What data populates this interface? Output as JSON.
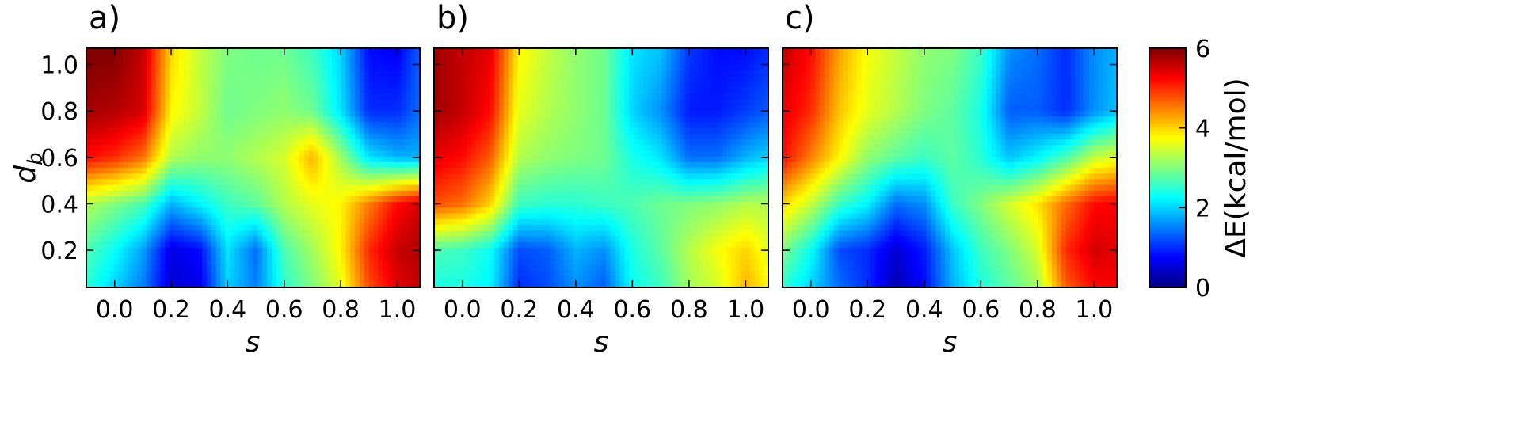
{
  "chart_data": [
    {
      "type": "heatmap",
      "panel_label": "a)",
      "xlabel": "s",
      "ylabel": "d",
      "ylabel_subscript": "b",
      "xlim": [
        -0.1,
        1.08
      ],
      "ylim": [
        0.04,
        1.07
      ],
      "xticks": [
        "0.0",
        "0.2",
        "0.4",
        "0.6",
        "0.8",
        "1.0"
      ],
      "xtick_values": [
        0.0,
        0.2,
        0.4,
        0.6,
        0.8,
        1.0
      ],
      "yticks": [
        "0.2",
        "0.4",
        "0.6",
        "0.8",
        "1.0"
      ],
      "ytick_values": [
        0.2,
        0.4,
        0.6,
        0.8,
        1.0
      ],
      "x": [
        -0.1,
        0.0,
        0.1,
        0.2,
        0.3,
        0.4,
        0.5,
        0.6,
        0.7,
        0.8,
        0.9,
        1.0,
        1.08
      ],
      "y": [
        0.04,
        0.2,
        0.4,
        0.6,
        0.8,
        1.07
      ],
      "z": [
        [
          2.5,
          2.0,
          1.5,
          0.5,
          0.6,
          2.0,
          1.5,
          2.5,
          3.0,
          3.6,
          4.8,
          5.4,
          5.6
        ],
        [
          2.7,
          2.3,
          1.7,
          0.6,
          0.8,
          2.1,
          1.4,
          2.7,
          3.2,
          3.8,
          5.0,
          5.6,
          5.7
        ],
        [
          3.3,
          3.0,
          2.7,
          1.8,
          2.2,
          2.6,
          2.8,
          3.3,
          3.6,
          3.8,
          4.5,
          5.2,
          5.5
        ],
        [
          5.2,
          5.0,
          4.6,
          3.3,
          3.1,
          3.1,
          3.3,
          3.5,
          4.2,
          3.2,
          2.1,
          1.8,
          1.8
        ],
        [
          5.8,
          5.7,
          5.5,
          3.8,
          3.4,
          2.9,
          3.0,
          3.1,
          2.9,
          2.1,
          1.0,
          1.0,
          1.4
        ],
        [
          6.0,
          6.0,
          5.6,
          4.0,
          3.4,
          3.0,
          2.9,
          2.9,
          2.6,
          2.0,
          0.8,
          0.7,
          1.3
        ]
      ]
    },
    {
      "type": "heatmap",
      "panel_label": "b)",
      "xlabel": "s",
      "ylabel": "",
      "xlim": [
        -0.1,
        1.08
      ],
      "ylim": [
        0.04,
        1.07
      ],
      "xticks": [
        "0.0",
        "0.2",
        "0.4",
        "0.6",
        "0.8",
        "1.0"
      ],
      "xtick_values": [
        0.0,
        0.2,
        0.4,
        0.6,
        0.8,
        1.0
      ],
      "yticks": [],
      "ytick_values": [
        0.2,
        0.4,
        0.6,
        0.8,
        1.0
      ],
      "x": [
        -0.1,
        0.0,
        0.1,
        0.2,
        0.3,
        0.4,
        0.5,
        0.6,
        0.7,
        0.8,
        0.9,
        1.0,
        1.08
      ],
      "y": [
        0.04,
        0.2,
        0.4,
        0.6,
        0.8,
        1.07
      ],
      "z": [
        [
          2.4,
          2.4,
          2.2,
          1.0,
          1.2,
          1.6,
          1.3,
          2.3,
          2.6,
          3.2,
          3.5,
          4.2,
          3.8
        ],
        [
          2.7,
          2.6,
          2.3,
          1.2,
          1.3,
          1.8,
          1.6,
          2.4,
          2.8,
          3.3,
          3.7,
          4.0,
          3.6
        ],
        [
          4.8,
          4.6,
          4.0,
          2.6,
          2.5,
          2.5,
          2.6,
          2.7,
          2.9,
          3.0,
          3.1,
          3.3,
          3.3
        ],
        [
          5.4,
          5.2,
          4.7,
          3.3,
          3.1,
          3.0,
          2.9,
          2.4,
          2.1,
          1.4,
          1.4,
          1.8,
          2.0
        ],
        [
          5.8,
          5.6,
          5.2,
          3.6,
          3.3,
          3.1,
          2.9,
          2.0,
          1.6,
          0.9,
          0.9,
          1.1,
          1.3
        ],
        [
          5.8,
          5.6,
          5.4,
          3.8,
          3.4,
          3.1,
          2.9,
          2.1,
          1.9,
          1.1,
          0.8,
          0.8,
          1.0
        ]
      ]
    },
    {
      "type": "heatmap",
      "panel_label": "c)",
      "xlabel": "s",
      "ylabel": "",
      "xlim": [
        -0.1,
        1.08
      ],
      "ylim": [
        0.04,
        1.07
      ],
      "xticks": [
        "0.0",
        "0.2",
        "0.4",
        "0.6",
        "0.8",
        "1.0"
      ],
      "xtick_values": [
        0.0,
        0.2,
        0.4,
        0.6,
        0.8,
        1.0
      ],
      "yticks": [],
      "ytick_values": [
        0.2,
        0.4,
        0.6,
        0.8,
        1.0
      ],
      "x": [
        -0.1,
        0.0,
        0.1,
        0.2,
        0.3,
        0.4,
        0.5,
        0.6,
        0.7,
        0.8,
        0.9,
        1.0,
        1.08
      ],
      "y": [
        0.04,
        0.2,
        0.4,
        0.6,
        0.8,
        1.07
      ],
      "z": [
        [
          2.5,
          2.0,
          1.4,
          1.0,
          0.3,
          0.8,
          1.8,
          2.4,
          2.8,
          3.2,
          4.7,
          5.2,
          5.3
        ],
        [
          3.0,
          2.3,
          1.2,
          1.0,
          0.5,
          0.9,
          1.9,
          2.6,
          3.0,
          3.5,
          5.0,
          5.5,
          5.4
        ],
        [
          4.0,
          3.4,
          2.6,
          2.2,
          1.4,
          1.6,
          2.6,
          3.0,
          3.5,
          3.9,
          4.6,
          5.2,
          5.3
        ],
        [
          5.2,
          4.5,
          3.8,
          3.1,
          2.8,
          2.6,
          2.8,
          2.5,
          1.9,
          2.2,
          2.7,
          3.4,
          3.6
        ],
        [
          5.4,
          5.0,
          4.1,
          3.6,
          3.3,
          3.0,
          2.8,
          2.4,
          1.3,
          1.3,
          1.0,
          1.6,
          1.9
        ],
        [
          5.6,
          5.2,
          4.3,
          3.7,
          3.4,
          3.1,
          3.0,
          2.6,
          1.6,
          1.4,
          1.0,
          1.6,
          1.8
        ]
      ]
    }
  ],
  "colorbar": {
    "label": "ΔE(kcal/mol)",
    "range": [
      0,
      6
    ],
    "ticks": [
      "0",
      "2",
      "4",
      "6"
    ],
    "tick_values": [
      0,
      2,
      4,
      6
    ],
    "colormap": "jet",
    "colors": [
      "#00007f",
      "#0000ff",
      "#007fff",
      "#00ffff",
      "#7fff7f",
      "#ffff00",
      "#ff7f00",
      "#ff0000",
      "#7f0000"
    ]
  }
}
